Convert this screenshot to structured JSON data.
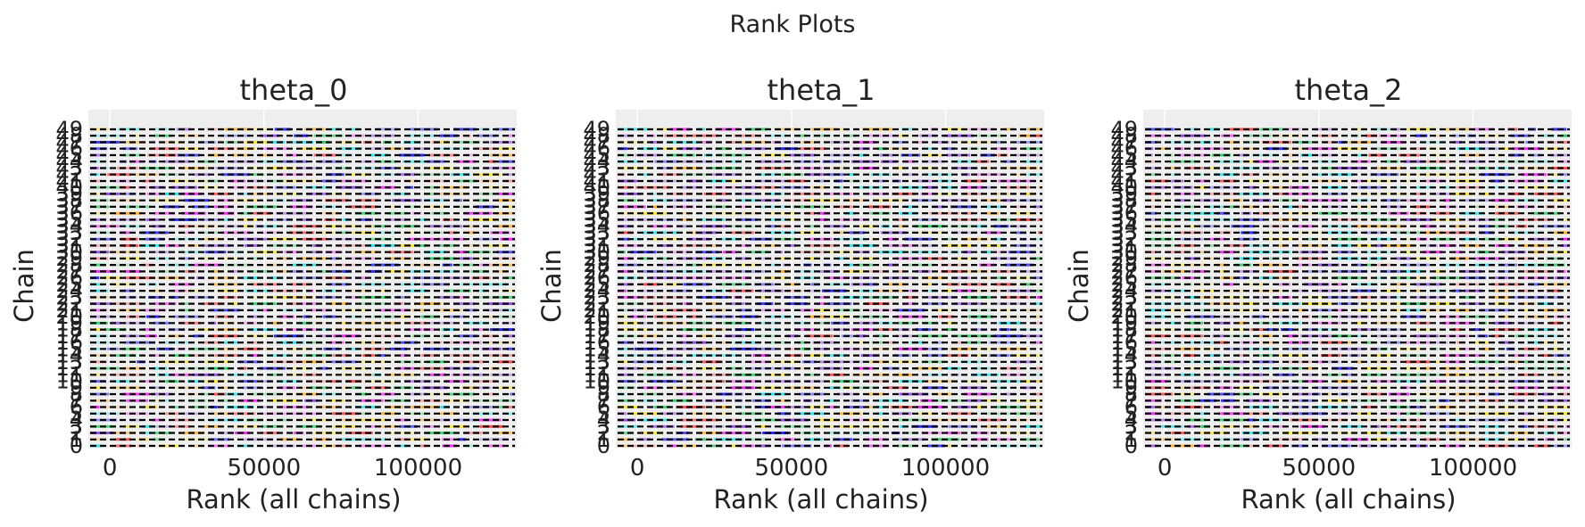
{
  "figure": {
    "title": "Rank Plots",
    "colors": {
      "panel_background": "#eeeeee",
      "grid": "#ffffff",
      "reference_line": "#000000",
      "text": "#222222",
      "bin_palette": [
        "#0000ff",
        "#ff00ff",
        "#ffa500",
        "#00cc44",
        "#00e5ee",
        "#ffe100",
        "#ff2a2a",
        "#8a2be2"
      ]
    }
  },
  "chart_data": [
    {
      "type": "rank",
      "title": "theta_0",
      "xlabel": "Rank (all chains)",
      "ylabel": "Chain",
      "xlim": [
        -7000,
        132000
      ],
      "xticks": [
        0,
        50000,
        100000
      ],
      "xtick_labels": [
        "0",
        "50000",
        "100000"
      ],
      "chains": 50,
      "ytick_labels": [
        "0",
        "1",
        "2",
        "3",
        "4",
        "5",
        "6",
        "7",
        "8",
        "9",
        "10",
        "11",
        "12",
        "13",
        "14",
        "15",
        "16",
        "17",
        "18",
        "19",
        "20",
        "21",
        "22",
        "23",
        "24",
        "25",
        "26",
        "27",
        "28",
        "29",
        "30",
        "31",
        "32",
        "33",
        "34",
        "35",
        "36",
        "37",
        "38",
        "39",
        "40",
        "41",
        "42",
        "43",
        "44",
        "45",
        "46",
        "47",
        "48",
        "49"
      ],
      "reference_line": "dashed",
      "grid": true,
      "seed": 3
    },
    {
      "type": "rank",
      "title": "theta_1",
      "xlabel": "Rank (all chains)",
      "ylabel": "Chain",
      "xlim": [
        -7000,
        132000
      ],
      "xticks": [
        0,
        50000,
        100000
      ],
      "xtick_labels": [
        "0",
        "50000",
        "100000"
      ],
      "chains": 50,
      "ytick_labels": [
        "0",
        "1",
        "2",
        "3",
        "4",
        "5",
        "6",
        "7",
        "8",
        "9",
        "10",
        "11",
        "12",
        "13",
        "14",
        "15",
        "16",
        "17",
        "18",
        "19",
        "20",
        "21",
        "22",
        "23",
        "24",
        "25",
        "26",
        "27",
        "28",
        "29",
        "30",
        "31",
        "32",
        "33",
        "34",
        "35",
        "36",
        "37",
        "38",
        "39",
        "40",
        "41",
        "42",
        "43",
        "44",
        "45",
        "46",
        "47",
        "48",
        "49"
      ],
      "reference_line": "dashed",
      "grid": true,
      "seed": 11
    },
    {
      "type": "rank",
      "title": "theta_2",
      "xlabel": "Rank (all chains)",
      "ylabel": "Chain",
      "xlim": [
        -7000,
        132000
      ],
      "xticks": [
        0,
        50000,
        100000
      ],
      "xtick_labels": [
        "0",
        "50000",
        "100000"
      ],
      "chains": 50,
      "ytick_labels": [
        "0",
        "1",
        "2",
        "3",
        "4",
        "5",
        "6",
        "7",
        "8",
        "9",
        "10",
        "11",
        "12",
        "13",
        "14",
        "15",
        "16",
        "17",
        "18",
        "19",
        "20",
        "21",
        "22",
        "23",
        "24",
        "25",
        "26",
        "27",
        "28",
        "29",
        "30",
        "31",
        "32",
        "33",
        "34",
        "35",
        "36",
        "37",
        "38",
        "39",
        "40",
        "41",
        "42",
        "43",
        "44",
        "45",
        "46",
        "47",
        "48",
        "49"
      ],
      "reference_line": "dashed",
      "grid": true,
      "seed": 29
    }
  ]
}
